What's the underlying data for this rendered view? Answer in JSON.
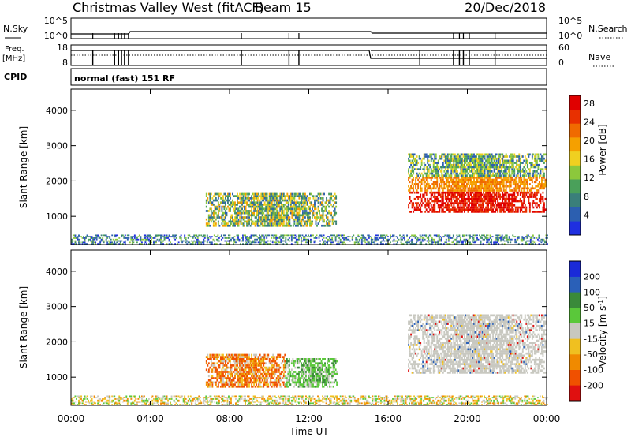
{
  "header": {
    "title": "Christmas Valley West (fitACF)",
    "beam": "Beam 15",
    "date": "20/Dec/2018"
  },
  "panels": {
    "nsky": {
      "label": "N.Sky",
      "tick_top": "10^5",
      "tick_bottom": "10^0",
      "right_label": "N.Search",
      "right_tick_top": "10^5",
      "right_tick_bottom": "10^0"
    },
    "freq": {
      "label_line1": "Freq.",
      "label_line2": "[MHz]",
      "tick_top": "18",
      "tick_bottom": "8",
      "right_label": "Nave",
      "right_tick_top": "60",
      "right_tick_bottom": "0"
    },
    "cpid": {
      "label": "CPID",
      "value": "normal (fast) 151 RF"
    }
  },
  "chart_data": [
    {
      "type": "heatmap",
      "name": "power",
      "ylabel": "Slant Range [km]",
      "xlabel": "",
      "yticks": [
        "1000",
        "2000",
        "3000",
        "4000"
      ],
      "ylim": [
        200,
        4600
      ],
      "xlim": [
        0,
        24
      ],
      "colorbar": {
        "label": "Power [dB]",
        "ticks": [
          "4",
          "8",
          "12",
          "16",
          "20",
          "24",
          "28"
        ],
        "colors": [
          "#1f2fe0",
          "#2c5fb0",
          "#3a7f7a",
          "#4aa05a",
          "#8cc83c",
          "#f0d020",
          "#f5a000",
          "#f06a00",
          "#e83000",
          "#e00000"
        ]
      },
      "echo_regions": [
        {
          "t_start": 6.8,
          "t_end": 13.4,
          "range_min": 700,
          "range_max": 1650,
          "dominant": "green-orange"
        },
        {
          "t_start": 17.0,
          "t_end": 23.9,
          "range_min": 1100,
          "range_max": 2750,
          "dominant": "red-orange"
        },
        {
          "t_start": 0.0,
          "t_end": 24.0,
          "range_min": 200,
          "range_max": 450,
          "dominant": "ground scatter band"
        }
      ]
    },
    {
      "type": "heatmap",
      "name": "velocity",
      "ylabel": "Slant Range [km]",
      "xlabel": "Time UT",
      "yticks": [
        "1000",
        "2000",
        "3000",
        "4000"
      ],
      "ylim": [
        200,
        4600
      ],
      "xlim": [
        0,
        24
      ],
      "colorbar": {
        "label": "Velocity [m s^-1]",
        "ticks": [
          "200",
          "100",
          "50",
          "15",
          "-15",
          "-50",
          "-100",
          "-200"
        ],
        "colors": [
          "#1a2ad8",
          "#2a60b8",
          "#3a8a3a",
          "#5ac83a",
          "#c8c8c0",
          "#f0c020",
          "#f08a00",
          "#f05000",
          "#e01010"
        ]
      },
      "echo_regions": [
        {
          "t_start": 6.8,
          "t_end": 10.8,
          "range_min": 700,
          "range_max": 1650,
          "dominant": "orange-red"
        },
        {
          "t_start": 10.8,
          "t_end": 13.4,
          "range_min": 700,
          "range_max": 1500,
          "dominant": "green"
        },
        {
          "t_start": 17.0,
          "t_end": 23.9,
          "range_min": 1100,
          "range_max": 2750,
          "dominant": "gray"
        }
      ],
      "xticks": [
        "00:00",
        "04:00",
        "08:00",
        "12:00",
        "16:00",
        "20:00",
        "00:00"
      ]
    }
  ]
}
